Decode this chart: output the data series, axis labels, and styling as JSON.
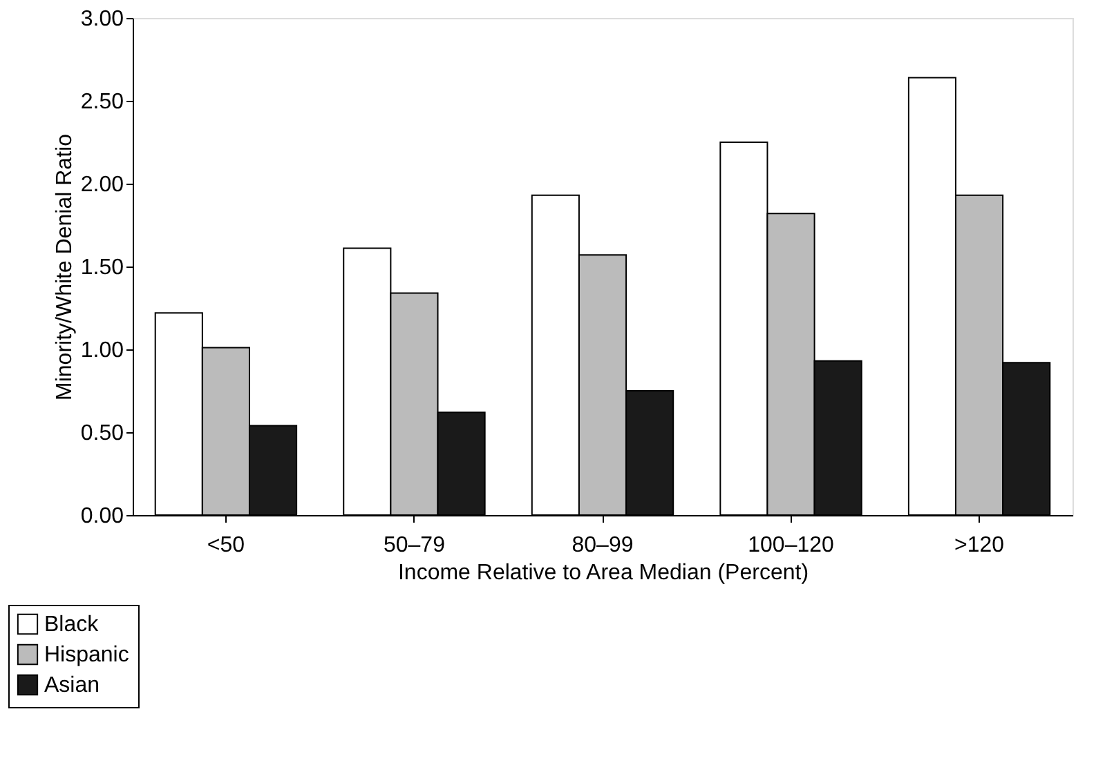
{
  "chart_data": {
    "type": "bar",
    "xlabel": "Income Relative to Area Median (Percent)",
    "ylabel": "Minority/White Denial Ratio",
    "categories": [
      "<50",
      "50–79",
      "80–99",
      "100–120",
      ">120"
    ],
    "series": [
      {
        "name": "Black",
        "color": "#ffffff",
        "values": [
          1.22,
          1.61,
          1.93,
          2.25,
          2.64
        ]
      },
      {
        "name": "Hispanic",
        "color": "#bbbbbb",
        "values": [
          1.01,
          1.34,
          1.57,
          1.82,
          1.93
        ]
      },
      {
        "name": "Asian",
        "color": "#1a1a1a",
        "values": [
          0.54,
          0.62,
          0.75,
          0.93,
          0.92
        ]
      }
    ],
    "ylim": [
      0,
      3
    ],
    "yticks": [
      {
        "value": 0,
        "label": "0.00"
      },
      {
        "value": 0.5,
        "label": "0.50"
      },
      {
        "value": 1,
        "label": "1.00"
      },
      {
        "value": 1.5,
        "label": "1.50"
      },
      {
        "value": 2,
        "label": "2.00"
      },
      {
        "value": 2.5,
        "label": "2.50"
      },
      {
        "value": 3,
        "label": "3.00"
      }
    ],
    "grid": false,
    "legend": "bottom left"
  }
}
